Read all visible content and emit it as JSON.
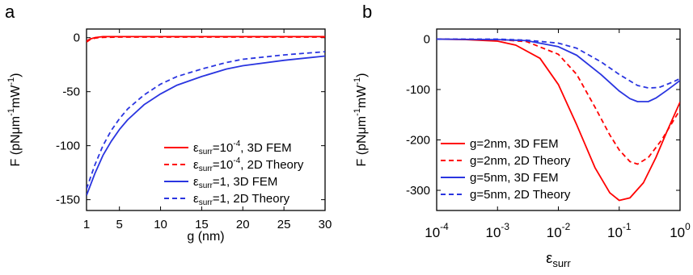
{
  "panels": {
    "a": {
      "label": "a"
    },
    "b": {
      "label": "b"
    }
  },
  "chart_data": [
    {
      "type": "line",
      "panel": "a",
      "xlabel": "g (nm)",
      "ylabel": "F (pNμm⁻¹mW⁻¹)",
      "xlim": [
        1,
        30
      ],
      "ylim": [
        -160,
        8
      ],
      "xticks": [
        "1",
        "5",
        "10",
        "15",
        "20",
        "25",
        "30"
      ],
      "xtick_values": [
        1,
        5,
        10,
        15,
        20,
        25,
        30
      ],
      "yticks": [
        "0",
        "-50",
        "-100",
        "-150"
      ],
      "ytick_values": [
        0,
        -50,
        -100,
        -150
      ],
      "legend_position": "bottom-right",
      "series": [
        {
          "name": "εsurr=10⁻⁴, 3D FEM",
          "color": "#ff0000",
          "dash": "solid",
          "x": [
            1,
            1.5,
            2,
            2.5,
            3,
            5,
            10,
            15,
            20,
            25,
            30
          ],
          "y": [
            -3,
            -1,
            0,
            0.5,
            1,
            1,
            1,
            1,
            1,
            1,
            1
          ]
        },
        {
          "name": "εsurr=10⁻⁴, 2D Theory",
          "color": "#ff0000",
          "dash": "dashed",
          "x": [
            1,
            1.5,
            2,
            2.5,
            3,
            5,
            10,
            15,
            20,
            25,
            30
          ],
          "y": [
            -4,
            -1.5,
            -0.5,
            0,
            0.3,
            0.5,
            0.5,
            0.5,
            0.5,
            0.5,
            0.5
          ]
        },
        {
          "name": "εsurr=1, 3D FEM",
          "color": "#2a35e0",
          "dash": "solid",
          "x": [
            1,
            2,
            3,
            4,
            5,
            6,
            8,
            10,
            12,
            15,
            18,
            20,
            25,
            30
          ],
          "y": [
            -146,
            -126,
            -109,
            -96,
            -85,
            -76,
            -62,
            -52,
            -44,
            -36,
            -29,
            -26,
            -21,
            -17
          ]
        },
        {
          "name": "εsurr=1, 2D Theory",
          "color": "#2a35e0",
          "dash": "dashed",
          "x": [
            1,
            2,
            3,
            4,
            5,
            6,
            8,
            10,
            12,
            15,
            18,
            20,
            25,
            30
          ],
          "y": [
            -140,
            -118,
            -100,
            -86,
            -75,
            -66,
            -53,
            -43,
            -36,
            -29,
            -23,
            -20,
            -16,
            -13
          ]
        }
      ],
      "legend": [
        {
          "prefix": "ε",
          "sub": "surr",
          "text": "=10",
          "sup": "-4",
          "suffix": ",  3D FEM",
          "color": "#ff0000",
          "dash": "solid"
        },
        {
          "prefix": "ε",
          "sub": "surr",
          "text": "=10",
          "sup": "-4",
          "suffix": ",  2D Theory",
          "color": "#ff0000",
          "dash": "dashed"
        },
        {
          "prefix": "ε",
          "sub": "surr",
          "text": "=1,  3D FEM",
          "sup": "",
          "suffix": "",
          "color": "#2a35e0",
          "dash": "solid"
        },
        {
          "prefix": "ε",
          "sub": "surr",
          "text": "=1,  2D Theory",
          "sup": "",
          "suffix": "",
          "color": "#2a35e0",
          "dash": "dashed"
        }
      ]
    },
    {
      "type": "line",
      "panel": "b",
      "xlabel": "εsurr",
      "ylabel": "F (pNμm⁻¹mW⁻¹)",
      "xscale": "log",
      "xlim": [
        0.0001,
        1
      ],
      "ylim": [
        -340,
        20
      ],
      "xticks": [
        "10⁻⁴",
        "10⁻³",
        "10⁻²",
        "10⁻¹",
        "10⁰"
      ],
      "xtick_values": [
        0.0001,
        0.001,
        0.01,
        0.1,
        1
      ],
      "yticks": [
        "0",
        "-100",
        "-200",
        "-300"
      ],
      "ytick_values": [
        0,
        -100,
        -200,
        -300
      ],
      "legend_position": "bottom-left",
      "series": [
        {
          "name": "g=2nm, 3D FEM",
          "color": "#ff0000",
          "dash": "solid",
          "x": [
            0.0001,
            0.0003,
            0.001,
            0.002,
            0.005,
            0.01,
            0.02,
            0.04,
            0.07,
            0.1,
            0.15,
            0.25,
            0.4,
            0.6,
            1
          ],
          "y": [
            0,
            -1,
            -4,
            -12,
            -38,
            -90,
            -170,
            -255,
            -305,
            -320,
            -315,
            -285,
            -235,
            -185,
            -125
          ]
        },
        {
          "name": "g=2nm, 2D Theory",
          "color": "#ff0000",
          "dash": "dashed",
          "x": [
            0.0001,
            0.001,
            0.003,
            0.01,
            0.02,
            0.04,
            0.07,
            0.1,
            0.15,
            0.2,
            0.3,
            0.5,
            1
          ],
          "y": [
            0,
            -1,
            -5,
            -30,
            -70,
            -135,
            -190,
            -220,
            -243,
            -248,
            -235,
            -200,
            -140
          ]
        },
        {
          "name": "g=5nm, 3D FEM",
          "color": "#2a35e0",
          "dash": "solid",
          "x": [
            0.0001,
            0.001,
            0.003,
            0.01,
            0.02,
            0.05,
            0.1,
            0.15,
            0.2,
            0.3,
            0.4,
            0.6,
            1
          ],
          "y": [
            0,
            -1,
            -3,
            -15,
            -32,
            -70,
            -103,
            -118,
            -124,
            -124,
            -117,
            -102,
            -82
          ]
        },
        {
          "name": "g=5nm, 2D Theory",
          "color": "#2a35e0",
          "dash": "dashed",
          "x": [
            0.0001,
            0.001,
            0.003,
            0.01,
            0.02,
            0.05,
            0.1,
            0.2,
            0.3,
            0.45,
            0.6,
            0.8,
            1
          ],
          "y": [
            0,
            0,
            -2,
            -8,
            -18,
            -45,
            -70,
            -92,
            -97,
            -96,
            -90,
            -84,
            -78
          ]
        }
      ],
      "legend": [
        {
          "text": "g=2nm, 3D FEM",
          "color": "#ff0000",
          "dash": "solid"
        },
        {
          "text": "g=2nm, 2D Theory",
          "color": "#ff0000",
          "dash": "dashed"
        },
        {
          "text": "g=5nm, 3D FEM",
          "color": "#2a35e0",
          "dash": "solid"
        },
        {
          "text": "g=5nm, 2D Theory",
          "color": "#2a35e0",
          "dash": "dashed"
        }
      ]
    }
  ]
}
